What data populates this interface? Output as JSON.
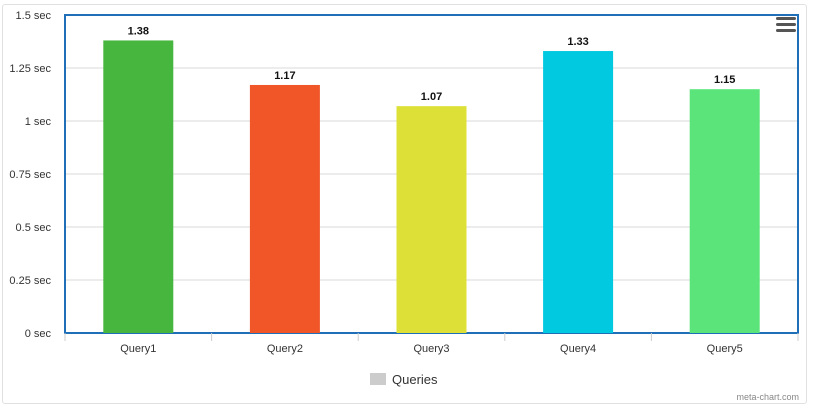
{
  "chart_data": {
    "type": "bar",
    "categories": [
      "Query1",
      "Query2",
      "Query3",
      "Query4",
      "Query5"
    ],
    "values": [
      1.38,
      1.17,
      1.07,
      1.33,
      1.15
    ],
    "data_labels": [
      "1.38",
      "1.17",
      "1.07",
      "1.33",
      "1.15"
    ],
    "colors": [
      "#47b63f",
      "#f15628",
      "#dde036",
      "#00c9e0",
      "#5ae47a"
    ],
    "y_ticks": [
      0,
      0.25,
      0.5,
      0.75,
      1,
      1.25,
      1.5
    ],
    "y_tick_labels": [
      "0 sec",
      "0.25 sec",
      "0.5 sec",
      "0.75 sec",
      "1 sec",
      "1.25 sec",
      "1.5 sec"
    ],
    "ylim": [
      0,
      1.5
    ],
    "grid": true,
    "legend": {
      "position": "bottom-center",
      "entries": [
        {
          "label": "Queries",
          "color": "#cccccc"
        }
      ]
    },
    "plot_border_color": "#1f6fb8",
    "gridline_color": "#d8d8d8"
  },
  "legend_label": "Queries",
  "credit": "meta-chart.com",
  "menu_icon": "hamburger-menu-icon"
}
